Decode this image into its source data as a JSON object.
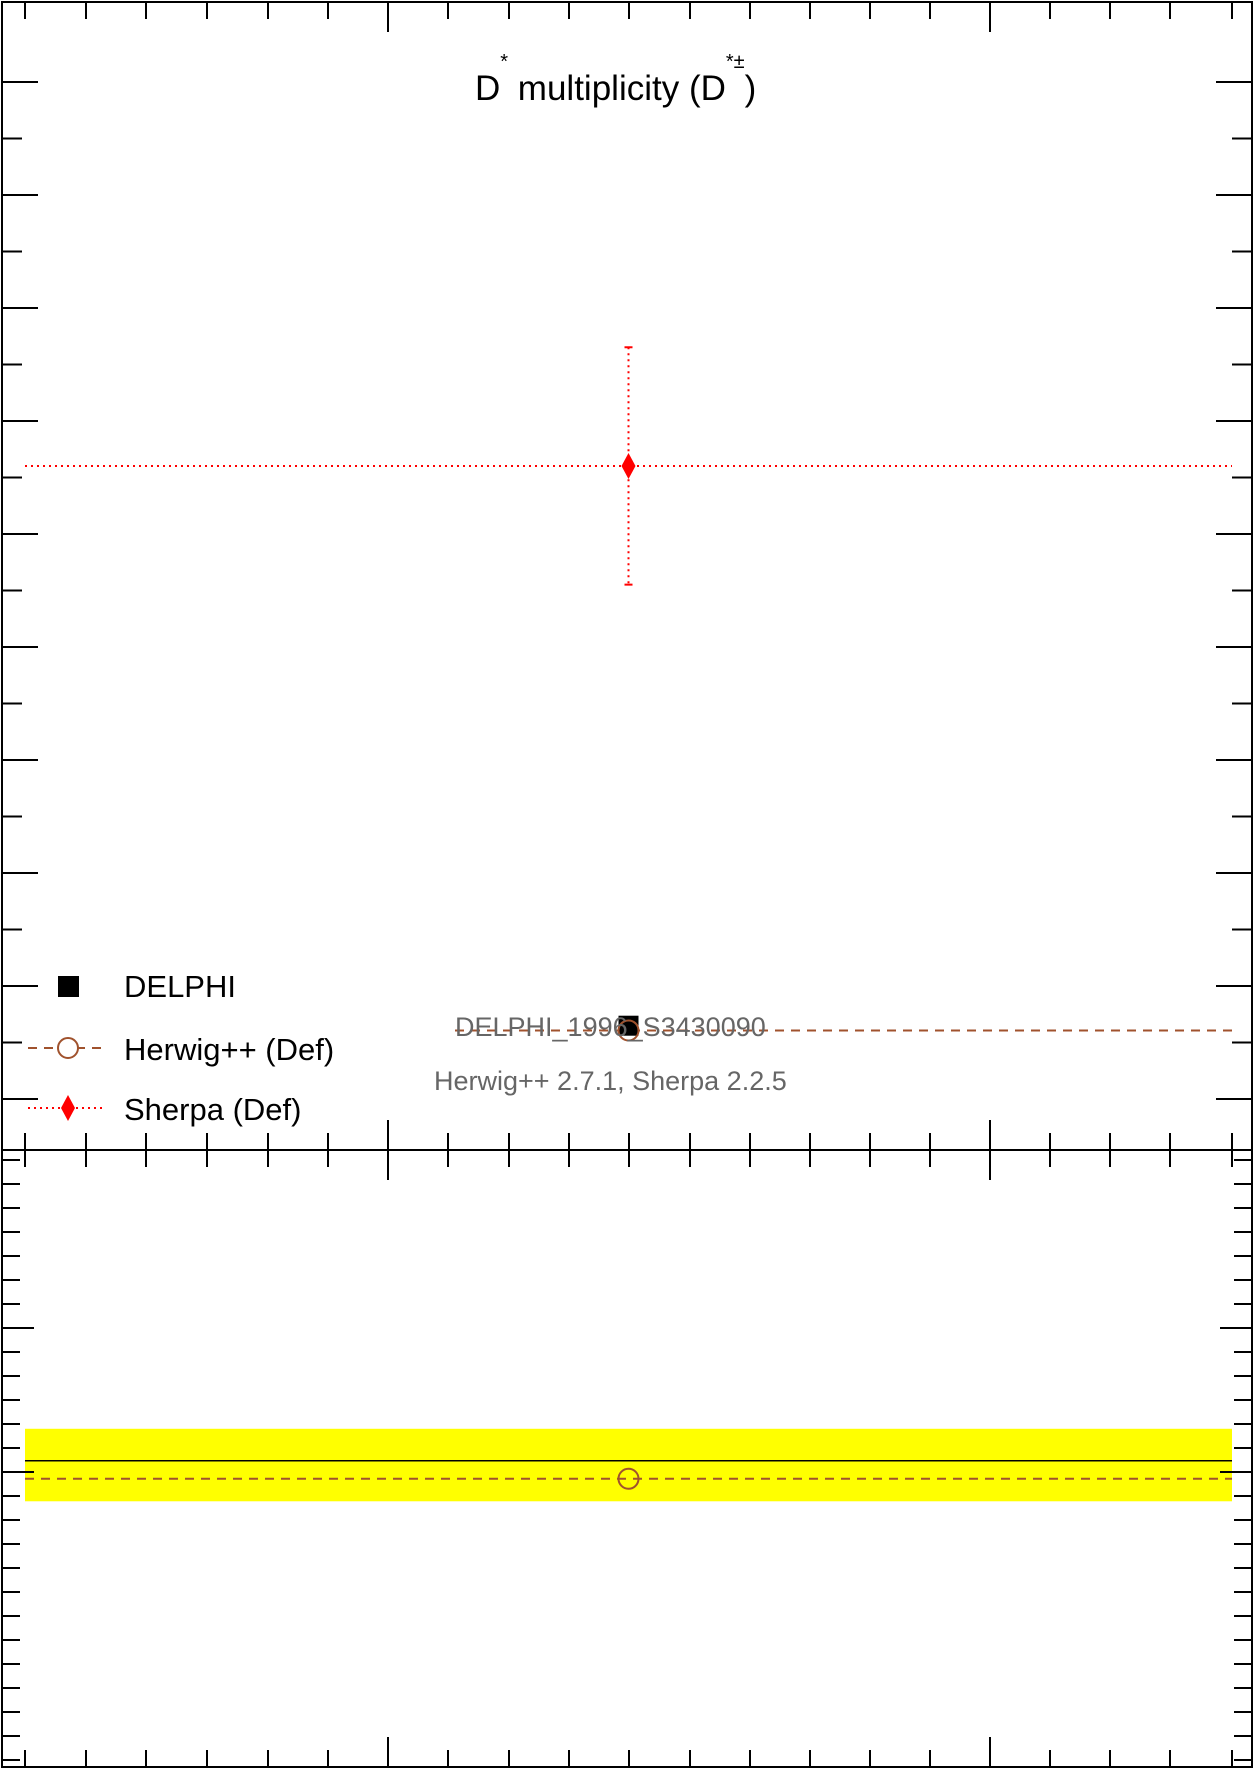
{
  "chart_data": [
    {
      "panel": "main",
      "type": "scatter",
      "title_main": "D",
      "title_sup1": "*",
      "title_mid": " multiplicity (D",
      "title_sup2": "*±",
      "title_end": ")",
      "title": "D* multiplicity (D*±)",
      "x": [
        0.0
      ],
      "xlim": [
        -0.5,
        0.5
      ],
      "series": [
        {
          "name": "DELPHI",
          "marker": "square",
          "color": "#000000",
          "line": "none",
          "points": [
            {
              "x": 0.0,
              "y": 0.1828,
              "yerr": 0.0013
            }
          ]
        },
        {
          "name": "Herwig++ (Def)",
          "marker": "open-circle",
          "color": "#a0522d",
          "line": "dashed",
          "points": [
            {
              "x": 0.0,
              "y": 0.1817,
              "yerr": 0.0
            }
          ]
        },
        {
          "name": "Sherpa (Def)",
          "marker": "diamond",
          "color": "#ff0000",
          "line": "dotted",
          "points": [
            {
              "x": 0.0,
              "y": 0.3125,
              "yerr": 0.0275
            }
          ]
        }
      ],
      "ylim": [
        0.154,
        0.42
      ],
      "grid": false,
      "legend_position": "bottom-left",
      "annotations": [
        "DELPHI_1996_S3430090",
        "Herwig++ 2.7.1, Sherpa 2.2.5"
      ]
    },
    {
      "panel": "ratio",
      "type": "line",
      "band": {
        "low": 0.955,
        "high": 1.0355,
        "color": "#ffff00"
      },
      "reference": 1.0,
      "series": [
        {
          "name": "Herwig++ (Def)",
          "color": "#a0522d",
          "line": "dashed",
          "marker": "open-circle",
          "points": [
            {
              "x": 0.0,
              "y": 0.98
            }
          ]
        }
      ],
      "ylim": [
        0.66,
        1.345
      ]
    }
  ],
  "colors": {
    "axis": "#000000",
    "herwig": "#a0522d",
    "sherpa": "#ff0000",
    "band": "#ffff00",
    "annotation": "#666666"
  }
}
